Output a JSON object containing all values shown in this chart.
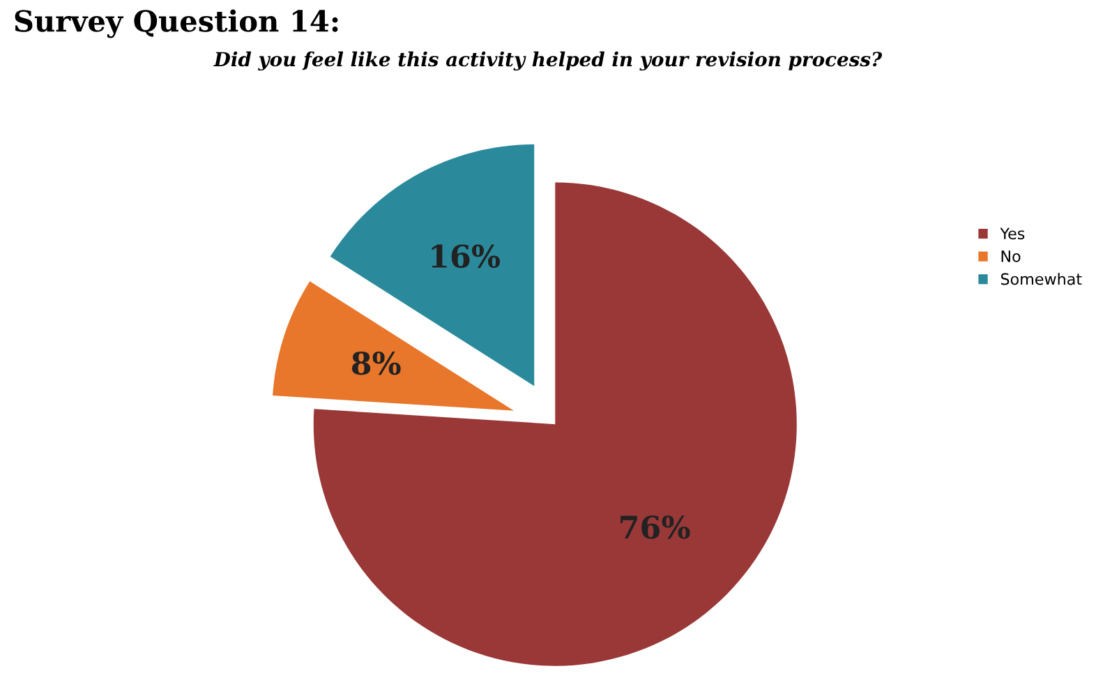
{
  "chart_data": {
    "type": "pie",
    "title": "Survey Question 14:",
    "subtitle": "Did you feel like this activity helped in your revision process?",
    "categories": [
      "Yes",
      "No",
      "Somewhat"
    ],
    "values": [
      76,
      8,
      16
    ],
    "colors": [
      "#9a3838",
      "#e8762b",
      "#2a8a9c"
    ],
    "value_labels": [
      "76%",
      "8%",
      "16%"
    ],
    "legend": "right"
  }
}
